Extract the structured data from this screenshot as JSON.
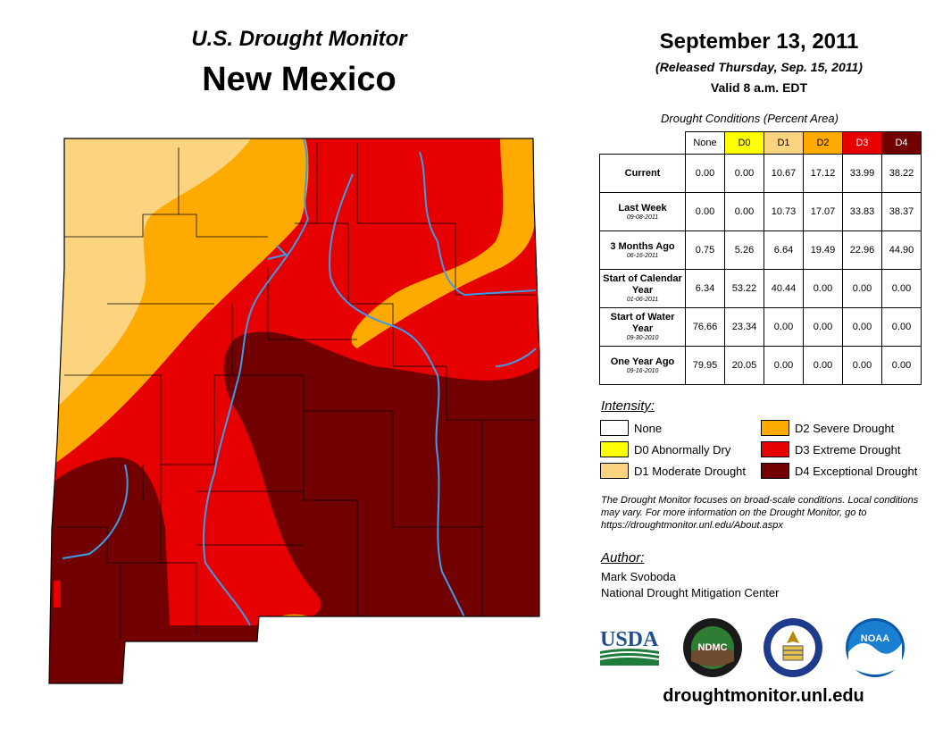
{
  "header": {
    "subtitle": "U.S. Drought Monitor",
    "state": "New Mexico",
    "date": "September 13, 2011",
    "released": "(Released Thursday, Sep. 15, 2011)",
    "valid": "Valid 8 a.m. EDT"
  },
  "table": {
    "caption": "Drought Conditions (Percent Area)",
    "columns": [
      "None",
      "D0",
      "D1",
      "D2",
      "D3",
      "D4"
    ],
    "column_colors": [
      "#ffffff",
      "#ffff00",
      "#fcd37f",
      "#ffaa00",
      "#e60000",
      "#730000"
    ],
    "column_text_colors": [
      "#000000",
      "#000000",
      "#000000",
      "#000000",
      "#ffffff",
      "#ffffff"
    ],
    "rows": [
      {
        "label": "Current",
        "date": "",
        "values": [
          "0.00",
          "0.00",
          "10.67",
          "17.12",
          "33.99",
          "38.22"
        ]
      },
      {
        "label": "Last Week",
        "date": "09-08-2011",
        "values": [
          "0.00",
          "0.00",
          "10.73",
          "17.07",
          "33.83",
          "38.37"
        ]
      },
      {
        "label": "3 Months Ago",
        "date": "06-16-2011",
        "values": [
          "0.75",
          "5.26",
          "6.64",
          "19.49",
          "22.96",
          "44.90"
        ]
      },
      {
        "label": "Start of Calendar Year",
        "date": "01-06-2011",
        "values": [
          "6.34",
          "53.22",
          "40.44",
          "0.00",
          "0.00",
          "0.00"
        ]
      },
      {
        "label": "Start of Water Year",
        "date": "09-30-2010",
        "values": [
          "76.66",
          "23.34",
          "0.00",
          "0.00",
          "0.00",
          "0.00"
        ]
      },
      {
        "label": "One Year Ago",
        "date": "09-16-2010",
        "values": [
          "79.95",
          "20.05",
          "0.00",
          "0.00",
          "0.00",
          "0.00"
        ]
      }
    ]
  },
  "legend": {
    "heading": "Intensity:",
    "items": [
      {
        "label": "None",
        "color": "#ffffff"
      },
      {
        "label": "D0 Abnormally Dry",
        "color": "#ffff00"
      },
      {
        "label": "D1 Moderate Drought",
        "color": "#fcd37f"
      },
      {
        "label": "D2 Severe Drought",
        "color": "#ffaa00"
      },
      {
        "label": "D3 Extreme Drought",
        "color": "#e60000"
      },
      {
        "label": "D4 Exceptional Drought",
        "color": "#730000"
      }
    ]
  },
  "note": "The Drought Monitor focuses on broad-scale conditions. Local conditions may vary. For more information on the Drought Monitor, go to https://droughtmonitor.unl.edu/About.aspx",
  "author": {
    "heading": "Author:",
    "name": "Mark Svoboda",
    "org": "National Drought Mitigation Center"
  },
  "logos": {
    "usda": "USDA",
    "ndmc": "NDMC",
    "noaa": "NOAA"
  },
  "website": "droughtmonitor.unl.edu"
}
